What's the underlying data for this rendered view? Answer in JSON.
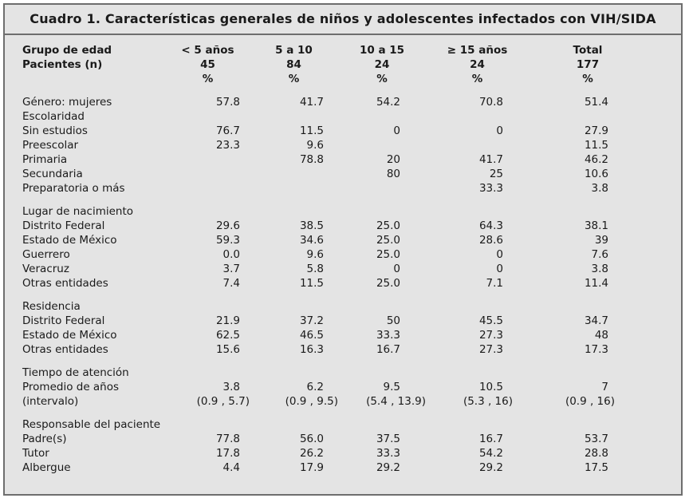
{
  "title": "Cuadro 1. Características generales de niños y adolescentes infectados con VIH/SIDA",
  "header": {
    "row1": [
      "Grupo de edad",
      "< 5 años",
      "5 a 10",
      "10 a 15",
      "≥ 15 años",
      "Total"
    ],
    "row2": [
      "Pacientes (n)",
      "45",
      "84",
      "24",
      "24",
      "177"
    ],
    "row3": [
      "",
      "%",
      "%",
      "%",
      "%",
      "%"
    ]
  },
  "rows": {
    "genero": [
      "Género: mujeres",
      "57.8",
      "41.7",
      "54.2",
      "70.8",
      "51.4"
    ],
    "escolaridad": "Escolaridad",
    "sin_estudios": [
      "Sin estudios",
      "76.7",
      "11.5",
      "0",
      "0",
      "27.9"
    ],
    "preescolar": [
      "Preescolar",
      "23.3",
      "9.6",
      "",
      "",
      "11.5"
    ],
    "primaria": [
      "Primaria",
      "",
      "78.8",
      "20",
      "41.7",
      "46.2"
    ],
    "secundaria": [
      "Secundaria",
      "",
      "",
      "80",
      "25",
      "10.6"
    ],
    "preparatoria": [
      "Preparatoria o más",
      "",
      "",
      "",
      "33.3",
      "3.8"
    ],
    "lugar": "Lugar de nacimiento",
    "lug_df": [
      "Distrito Federal",
      "29.6",
      "38.5",
      "25.0",
      "64.3",
      "38.1"
    ],
    "lug_edomex": [
      "Estado de México",
      "59.3",
      "34.6",
      "25.0",
      "28.6",
      "39"
    ],
    "lug_guerrero": [
      "Guerrero",
      "0.0",
      "9.6",
      "25.0",
      "0",
      "7.6"
    ],
    "lug_veracruz": [
      "Veracruz",
      "3.7",
      "5.8",
      "0",
      "0",
      "3.8"
    ],
    "lug_otras": [
      "Otras entidades",
      "7.4",
      "11.5",
      "25.0",
      "7.1",
      "11.4"
    ],
    "residencia": "Residencia",
    "res_df": [
      "Distrito Federal",
      "21.9",
      "37.2",
      "50",
      "45.5",
      "34.7"
    ],
    "res_edomex": [
      "Estado de México",
      "62.5",
      "46.5",
      "33.3",
      "27.3",
      "48"
    ],
    "res_otras": [
      "Otras entidades",
      "15.6",
      "16.3",
      "16.7",
      "27.3",
      "17.3"
    ],
    "tiempo": "Tiempo de atención",
    "promedio": [
      "Promedio de años",
      "3.8",
      "6.2",
      "9.5",
      "10.5",
      "7"
    ],
    "intervalo": [
      "(intervalo)",
      "(0.9 , 5.7)",
      "(0.9 , 9.5)",
      "(5.4 , 13.9)",
      "(5.3 , 16)",
      "(0.9 , 16)"
    ],
    "responsable": "Responsable del paciente",
    "padres": [
      "Padre(s)",
      "77.8",
      "56.0",
      "37.5",
      "16.7",
      "53.7"
    ],
    "tutor": [
      "Tutor",
      "17.8",
      "26.2",
      "33.3",
      "54.2",
      "28.8"
    ],
    "albergue": [
      "Albergue",
      "4.4",
      "17.9",
      "29.2",
      "29.2",
      "17.5"
    ]
  }
}
